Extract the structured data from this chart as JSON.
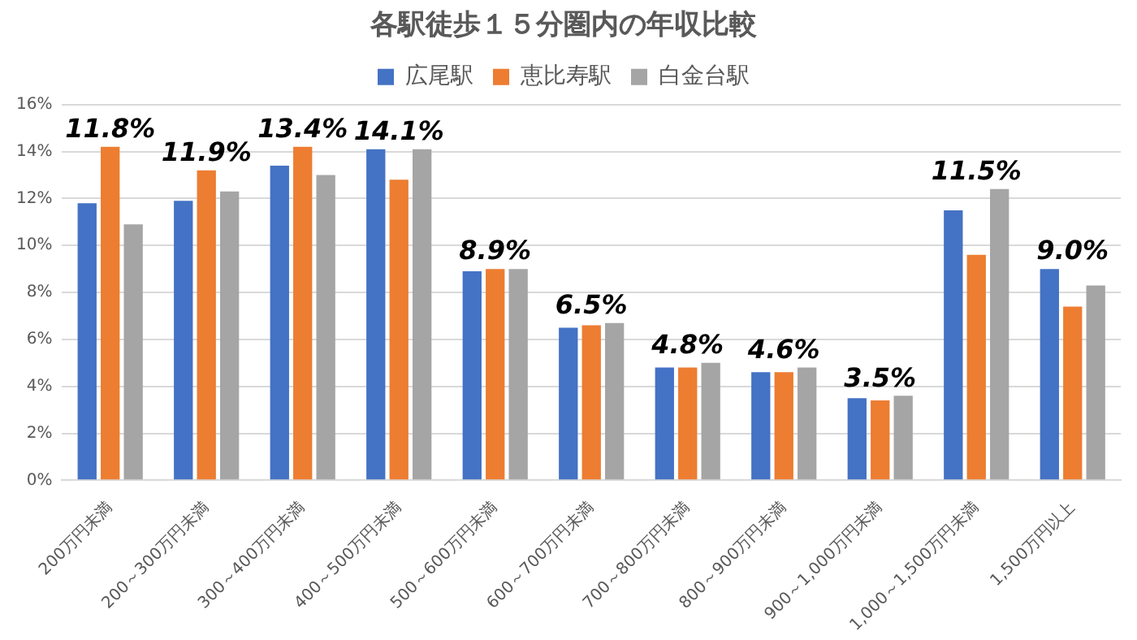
{
  "chart_data": {
    "type": "bar",
    "title": "各駅徒歩１５分圏内の年収比較",
    "categories": [
      "200万円未満",
      "200～300万円未満",
      "300～400万円未満",
      "400～500万円未満",
      "500～600万円未満",
      "600～700万円未満",
      "700～800万円未満",
      "800～900万円未満",
      "900～1,000万円未満",
      "1,000～1,500万円未満",
      "1,500万円以上"
    ],
    "series": [
      {
        "name": "広尾駅",
        "color": "#4472c4",
        "values": [
          11.8,
          11.9,
          13.4,
          14.1,
          8.9,
          6.5,
          4.8,
          4.6,
          3.5,
          11.5,
          9.0
        ],
        "value_labels": [
          "11.8%",
          "11.9%",
          "13.4%",
          "14.1%",
          "8.9%",
          "6.5%",
          "4.8%",
          "4.6%",
          "3.5%",
          "11.5%",
          "9.0%"
        ]
      },
      {
        "name": "恵比寿駅",
        "color": "#ed7d31",
        "values": [
          14.2,
          13.2,
          14.2,
          12.8,
          9.0,
          6.6,
          4.8,
          4.6,
          3.4,
          9.6,
          7.4
        ]
      },
      {
        "name": "白金台駅",
        "color": "#a5a5a5",
        "values": [
          10.9,
          12.3,
          13.0,
          14.1,
          9.0,
          6.7,
          5.0,
          4.8,
          3.6,
          12.4,
          8.3
        ]
      }
    ],
    "ylim": [
      0,
      16
    ],
    "yticks": [
      {
        "value": 0,
        "label": "0%"
      },
      {
        "value": 2,
        "label": "2%"
      },
      {
        "value": 4,
        "label": "4%"
      },
      {
        "value": 6,
        "label": "6%"
      },
      {
        "value": 8,
        "label": "8%"
      },
      {
        "value": 10,
        "label": "10%"
      },
      {
        "value": 12,
        "label": "12%"
      },
      {
        "value": 14,
        "label": "14%"
      },
      {
        "value": 16,
        "label": "16%"
      }
    ],
    "grid": "y",
    "legend": "top"
  }
}
